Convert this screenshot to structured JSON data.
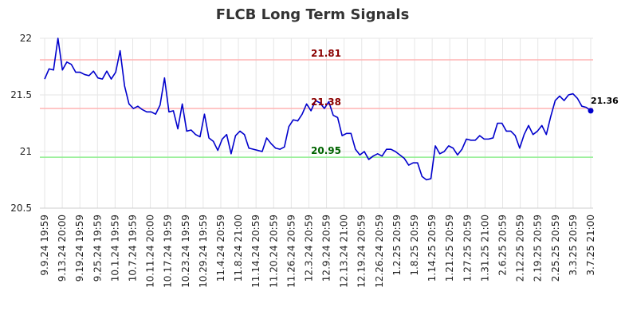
{
  "chart_data": {
    "type": "line",
    "title": "FLCB Long Term Signals",
    "xlabel": "",
    "ylabel": "",
    "ylim": [
      20.5,
      22.0
    ],
    "y_ticks": [
      "20.5",
      "21",
      "21.5",
      "22"
    ],
    "y_tick_values": [
      20.5,
      21.0,
      21.5,
      22.0
    ],
    "grid": true,
    "x_tick_labels": [
      "9.9.24 19:59",
      "9.13.24 20:00",
      "9.19.24 19:59",
      "9.25.24 19:59",
      "10.1.24 19:59",
      "10.7.24 19:59",
      "10.11.24 20:00",
      "10.17.24 19:59",
      "10.23.24 19:59",
      "10.29.24 19:59",
      "11.4.24 20:59",
      "11.8.24 21:00",
      "11.14.24 20:59",
      "11.20.24 20:59",
      "11.26.24 20:59",
      "12.3.24 20:59",
      "12.9.24 20:59",
      "12.13.24 21:00",
      "12.19.24 20:59",
      "12.26.24 20:59",
      "1.2.25 20:59",
      "1.8.25 20:59",
      "1.14.25 20:59",
      "1.21.25 20:59",
      "1.27.25 20:59",
      "1.31.25 21:00",
      "2.6.25 20:59",
      "2.12.25 20:59",
      "2.19.25 20:59",
      "2.25.25 20:59",
      "3.3.25 20:59",
      "3.7.25 21:00"
    ],
    "reference_lines": [
      {
        "label": "21.81",
        "value": 21.81,
        "line_color": "#ffb3b3",
        "label_color": "#8b0000"
      },
      {
        "label": "21.38",
        "value": 21.38,
        "line_color": "#ffb3b3",
        "label_color": "#8b0000"
      },
      {
        "label": "20.95",
        "value": 20.95,
        "line_color": "#90ee90",
        "label_color": "#006400"
      }
    ],
    "last_value_label": "21.36",
    "series": [
      {
        "color": "#0000cc",
        "values": [
          21.64,
          21.73,
          21.72,
          22.0,
          21.72,
          21.79,
          21.77,
          21.7,
          21.7,
          21.68,
          21.67,
          21.71,
          21.65,
          21.64,
          21.71,
          21.64,
          21.7,
          21.89,
          21.58,
          21.42,
          21.38,
          21.4,
          21.37,
          21.35,
          21.35,
          21.33,
          21.41,
          21.65,
          21.35,
          21.36,
          21.2,
          21.42,
          21.18,
          21.19,
          21.15,
          21.13,
          21.33,
          21.12,
          21.09,
          21.01,
          21.11,
          21.15,
          20.98,
          21.14,
          21.18,
          21.15,
          21.03,
          21.02,
          21.01,
          21.0,
          21.12,
          21.07,
          21.03,
          21.02,
          21.04,
          21.22,
          21.28,
          21.27,
          21.33,
          21.42,
          21.36,
          21.45,
          21.43,
          21.38,
          21.44,
          21.32,
          21.3,
          21.14,
          21.16,
          21.16,
          21.02,
          20.97,
          21.0,
          20.93,
          20.96,
          20.98,
          20.96,
          21.02,
          21.02,
          21.0,
          20.97,
          20.94,
          20.88,
          20.9,
          20.9,
          20.78,
          20.75,
          20.76,
          21.05,
          20.98,
          21.0,
          21.05,
          21.03,
          20.97,
          21.02,
          21.11,
          21.1,
          21.1,
          21.14,
          21.11,
          21.11,
          21.12,
          21.25,
          21.25,
          21.18,
          21.18,
          21.14,
          21.03,
          21.15,
          21.23,
          21.15,
          21.18,
          21.23,
          21.15,
          21.31,
          21.45,
          21.49,
          21.45,
          21.5,
          21.51,
          21.47,
          21.4,
          21.39,
          21.36
        ]
      }
    ]
  }
}
